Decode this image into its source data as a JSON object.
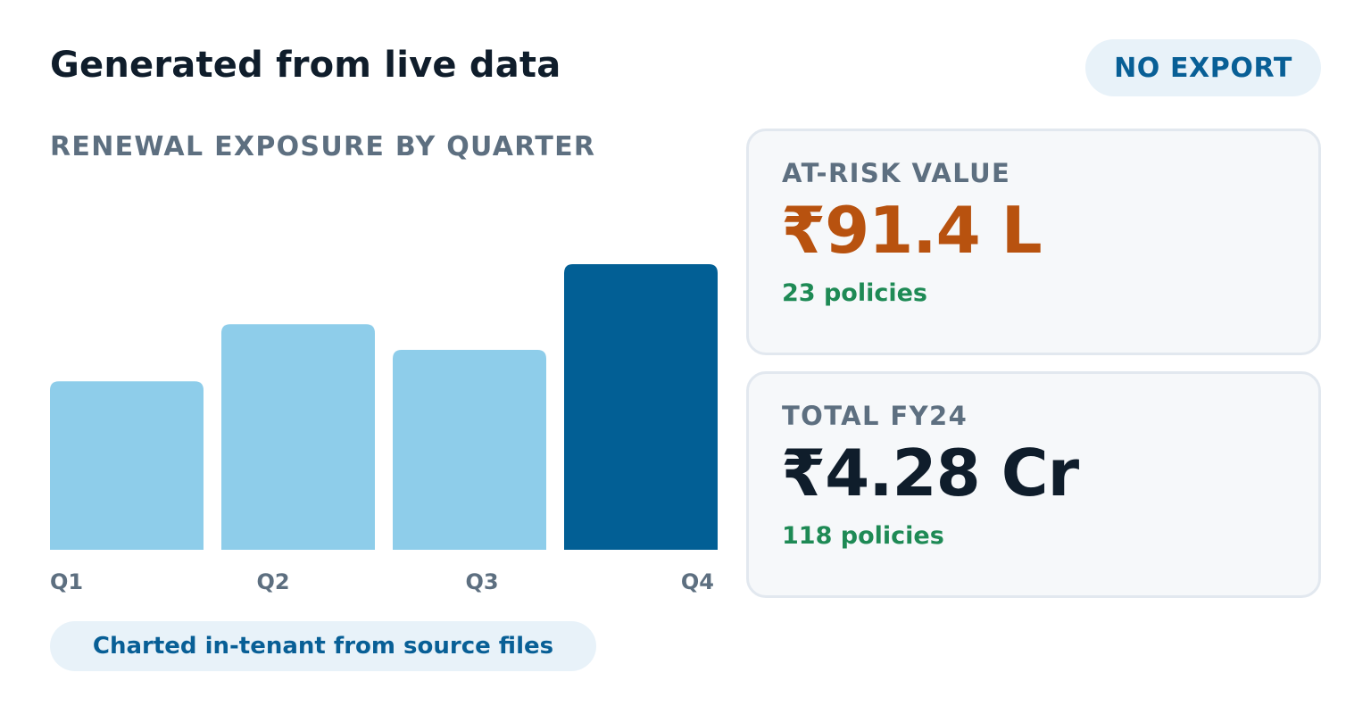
{
  "header": {
    "title": "Generated from live data",
    "badge": "NO EXPORT"
  },
  "chart_section": {
    "title": "RENEWAL EXPOSURE BY QUARTER",
    "footer_note": "Charted in-tenant from source files"
  },
  "chart_data": {
    "type": "bar",
    "categories": [
      "Q1",
      "Q2",
      "Q3",
      "Q4"
    ],
    "values": [
      59,
      79,
      70,
      100
    ],
    "ylim": [
      0,
      100
    ],
    "grid": false,
    "legend": "none",
    "colors": [
      "#8ecdea",
      "#8ecdea",
      "#8ecdea",
      "#025f95"
    ],
    "title": "",
    "xlabel": "",
    "ylabel": ""
  },
  "stats": {
    "at_risk": {
      "label": "AT-RISK VALUE",
      "value": "₹91.4 L",
      "sub": "23 policies",
      "value_color": "#b8520f"
    },
    "total": {
      "label": "TOTAL FY24",
      "value": "₹4.28 Cr",
      "sub": "118 policies",
      "value_color": "#0f1d2b"
    }
  },
  "colors": {
    "accent": "#085f96",
    "pill_bg": "#e8f2f9",
    "positive": "#1e8a55",
    "muted": "#5d6f80"
  }
}
